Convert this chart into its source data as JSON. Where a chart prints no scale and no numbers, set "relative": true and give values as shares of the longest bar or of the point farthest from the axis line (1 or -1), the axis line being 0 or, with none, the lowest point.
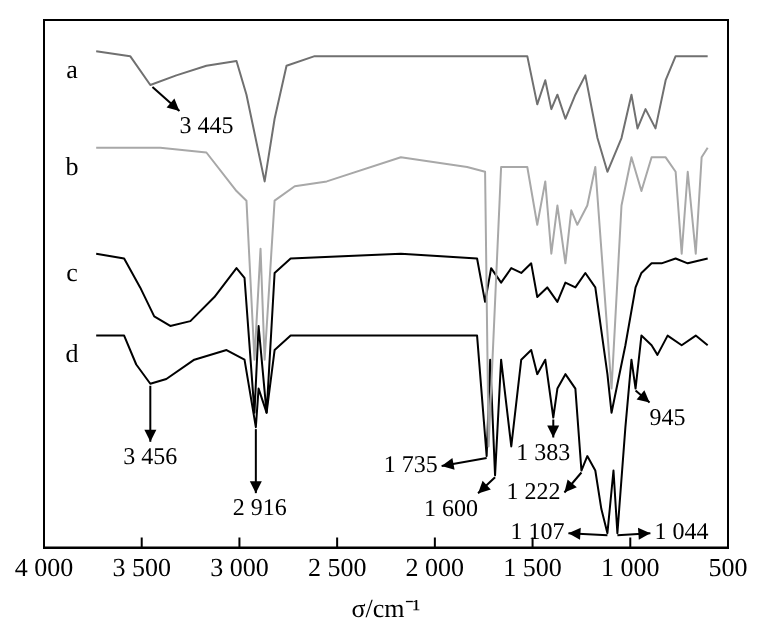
{
  "chart_data": {
    "type": "line",
    "relative": true,
    "xlabel": "σ/cm⁻¹",
    "xlim": [
      4000,
      500
    ],
    "xticks": [
      {
        "value": 4000,
        "label": "4 000"
      },
      {
        "value": 3500,
        "label": "3 500"
      },
      {
        "value": 3000,
        "label": "3 000"
      },
      {
        "value": 2500,
        "label": "2 500"
      },
      {
        "value": 2000,
        "label": "2 000"
      },
      {
        "value": 1500,
        "label": "1 500"
      },
      {
        "value": 1000,
        "label": "1 000"
      },
      {
        "value": 500,
        "label": "500"
      }
    ],
    "tick_labels": "x",
    "grid": false,
    "legend": false,
    "marker": "none",
    "line_style": "solid",
    "series": [
      {
        "name": "a",
        "color": "#707070",
        "x": [
          3733,
          3559,
          3456,
          3323,
          3169,
          3015,
          2964,
          2871,
          2820,
          2759,
          2615,
          1969,
          1527,
          1476,
          1435,
          1404,
          1373,
          1332,
          1281,
          1230,
          1168,
          1117,
          1045,
          994,
          963,
          922,
          871,
          819,
          768,
          604
        ],
        "values": [
          1.0,
          0.99,
          0.93,
          0.95,
          0.97,
          0.98,
          0.91,
          0.73,
          0.86,
          0.97,
          0.99,
          0.99,
          0.99,
          0.89,
          0.94,
          0.88,
          0.91,
          0.86,
          0.91,
          0.95,
          0.82,
          0.75,
          0.82,
          0.91,
          0.84,
          0.88,
          0.84,
          0.94,
          0.99,
          0.99
        ]
      },
      {
        "name": "b",
        "color": "#a8a8a8",
        "x": [
          3733,
          3405,
          3169,
          3015,
          2964,
          2923,
          2892,
          2871,
          2820,
          2717,
          2553,
          2174,
          1835,
          1743,
          1725,
          1661,
          1527,
          1476,
          1435,
          1404,
          1373,
          1332,
          1302,
          1271,
          1220,
          1179,
          1096,
          1045,
          994,
          943,
          891,
          819,
          768,
          737,
          706,
          665,
          635,
          604
        ],
        "values": [
          0.8,
          0.8,
          0.79,
          0.71,
          0.69,
          0.36,
          0.59,
          0.36,
          0.69,
          0.72,
          0.73,
          0.78,
          0.76,
          0.75,
          0.18,
          0.76,
          0.76,
          0.64,
          0.73,
          0.58,
          0.68,
          0.56,
          0.67,
          0.64,
          0.68,
          0.76,
          0.3,
          0.68,
          0.78,
          0.71,
          0.78,
          0.78,
          0.75,
          0.58,
          0.75,
          0.58,
          0.78,
          0.8
        ]
      },
      {
        "name": "c",
        "color": "#000000",
        "x": [
          3733,
          3590,
          3508,
          3436,
          3354,
          3251,
          3128,
          3015,
          2974,
          2923,
          2902,
          2861,
          2820,
          2738,
          2174,
          1784,
          1743,
          1712,
          1661,
          1609,
          1558,
          1507,
          1476,
          1425,
          1373,
          1332,
          1281,
          1230,
          1179,
          1117,
          1096,
          1025,
          973,
          943,
          891,
          840,
          768,
          706,
          604
        ],
        "values": [
          0.58,
          0.57,
          0.51,
          0.45,
          0.43,
          0.44,
          0.49,
          0.55,
          0.53,
          0.25,
          0.43,
          0.25,
          0.54,
          0.57,
          0.58,
          0.57,
          0.48,
          0.55,
          0.52,
          0.55,
          0.54,
          0.56,
          0.49,
          0.51,
          0.48,
          0.52,
          0.51,
          0.54,
          0.51,
          0.33,
          0.25,
          0.39,
          0.51,
          0.54,
          0.56,
          0.56,
          0.57,
          0.56,
          0.57
        ]
      },
      {
        "name": "d",
        "color": "#000000",
        "x": [
          3733,
          3590,
          3528,
          3456,
          3374,
          3231,
          3066,
          2974,
          2916,
          2902,
          2861,
          2820,
          2738,
          2174,
          1784,
          1735,
          1717,
          1692,
          1661,
          1609,
          1558,
          1507,
          1476,
          1435,
          1394,
          1373,
          1332,
          1281,
          1250,
          1220,
          1179,
          1148,
          1117,
          1086,
          1066,
          1025,
          994,
          973,
          943,
          891,
          861,
          809,
          737,
          665,
          604
        ],
        "values": [
          0.41,
          0.41,
          0.35,
          0.31,
          0.32,
          0.36,
          0.38,
          0.36,
          0.22,
          0.3,
          0.25,
          0.38,
          0.41,
          0.41,
          0.41,
          0.16,
          0.36,
          0.12,
          0.36,
          0.18,
          0.36,
          0.38,
          0.33,
          0.36,
          0.24,
          0.3,
          0.33,
          0.3,
          0.13,
          0.16,
          0.13,
          0.05,
          0.0,
          0.13,
          0.0,
          0.22,
          0.36,
          0.3,
          0.41,
          0.39,
          0.37,
          0.41,
          0.39,
          0.41,
          0.39
        ]
      }
    ],
    "annotations": [
      {
        "text": "3 445",
        "x": 3445,
        "y": 0.93
      },
      {
        "text": "3 456",
        "x": 3456,
        "y": 0.31
      },
      {
        "text": "2 916",
        "x": 2916,
        "y": 0.22
      },
      {
        "text": "1 735",
        "x": 1735,
        "y": 0.16
      },
      {
        "text": "1 600",
        "x": 1692,
        "y": 0.12
      },
      {
        "text": "1 383",
        "x": 1394,
        "y": 0.24
      },
      {
        "text": "1 222",
        "x": 1250,
        "y": 0.13
      },
      {
        "text": "1 107",
        "x": 1117,
        "y": 0.0
      },
      {
        "text": "1 044",
        "x": 1066,
        "y": 0.0
      },
      {
        "text": "945",
        "x": 973,
        "y": 0.3
      }
    ]
  }
}
